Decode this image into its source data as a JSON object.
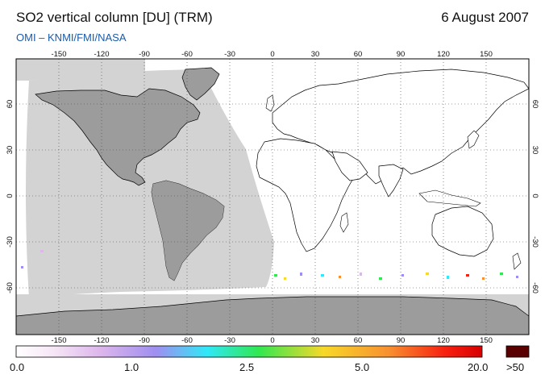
{
  "header": {
    "title": "SO2 vertical column [DU] (TRM)",
    "date": "6 August 2007",
    "credit": "OMI  –  KNMI/FMI/NASA"
  },
  "map": {
    "lon_ticks": [
      "-150",
      "-120",
      "-90",
      "-60",
      "-30",
      "0",
      "30",
      "60",
      "90",
      "120",
      "150"
    ],
    "lat_ticks": [
      "60",
      "30",
      "0",
      "-30",
      "-60"
    ],
    "colors": {
      "land": "#9c9c9c",
      "no_data": "#d3d3d3",
      "background": "#ffffff",
      "coast": "#000000"
    }
  },
  "colorbar": {
    "labels": [
      "0.0",
      "1.0",
      "2.5",
      "5.0",
      "20.0",
      ">50"
    ],
    "gradient_stops": [
      "#ffffff",
      "#f6e6f6",
      "#ddb6ec",
      "#9f8ef0",
      "#30e8f8",
      "#30e850",
      "#f8d828",
      "#f89030",
      "#f82010",
      "#d80000"
    ],
    "overflow_color": "#5a0000"
  }
}
